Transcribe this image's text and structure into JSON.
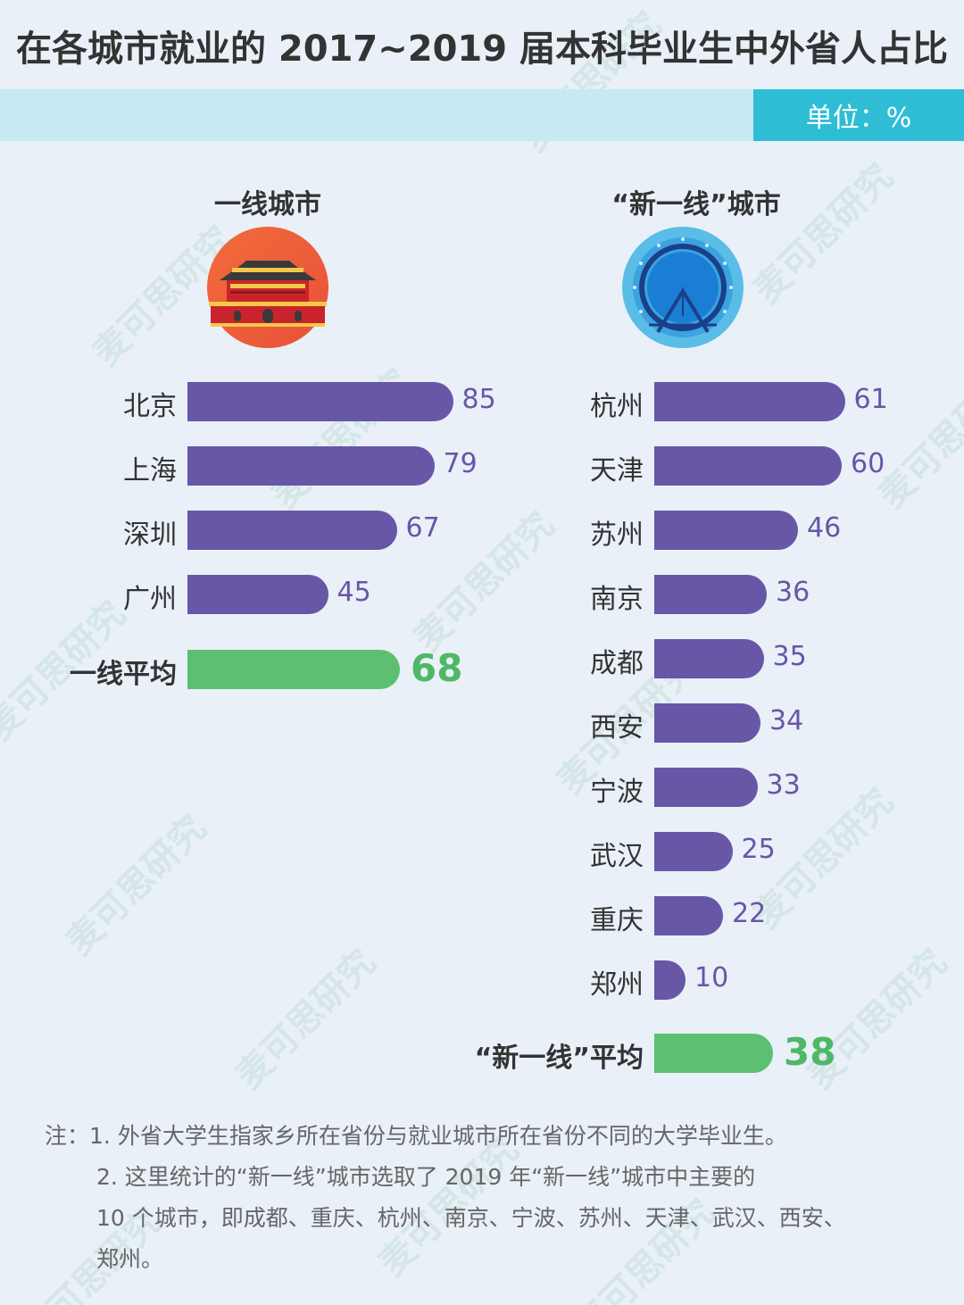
{
  "title": "在各城市就业的 2017~2019 届本科毕业生中外省人占比",
  "unit_label": "单位：%",
  "watermark": "麦可思研究",
  "colors": {
    "background": "#e9f0f8",
    "bar": "#6856a7",
    "average_bar": "#5cbf72",
    "unit_band": "#c6e9f3",
    "unit_box": "#2fbdd6"
  },
  "icons": {
    "left": "gate-tower-icon",
    "right": "ferris-wheel-icon"
  },
  "chart_data": [
    {
      "type": "bar",
      "orientation": "horizontal",
      "title": "一线城市",
      "categories": [
        "北京",
        "上海",
        "深圳",
        "广州"
      ],
      "values": [
        85,
        79,
        67,
        45
      ],
      "average": {
        "label": "一线平均",
        "value": 68
      },
      "xlim": [
        0,
        100
      ]
    },
    {
      "type": "bar",
      "orientation": "horizontal",
      "title": "“新一线”城市",
      "categories": [
        "杭州",
        "天津",
        "苏州",
        "南京",
        "成都",
        "西安",
        "宁波",
        "武汉",
        "重庆",
        "郑州"
      ],
      "values": [
        61,
        60,
        46,
        36,
        35,
        34,
        33,
        25,
        22,
        10
      ],
      "average": {
        "label": "“新一线”平均",
        "value": 38
      },
      "xlim": [
        0,
        100
      ]
    }
  ],
  "notes": {
    "prefix": "注：",
    "line1": "1. 外省大学生指家乡所在省份与就业城市所在省份不同的大学毕业生。",
    "line2": "2. 这里统计的“新一线”城市选取了 2019 年“新一线”城市中主要的",
    "line3": "10 个城市，即成都、重庆、杭州、南京、宁波、苏州、天津、武汉、西安、",
    "line4": "郑州。"
  }
}
